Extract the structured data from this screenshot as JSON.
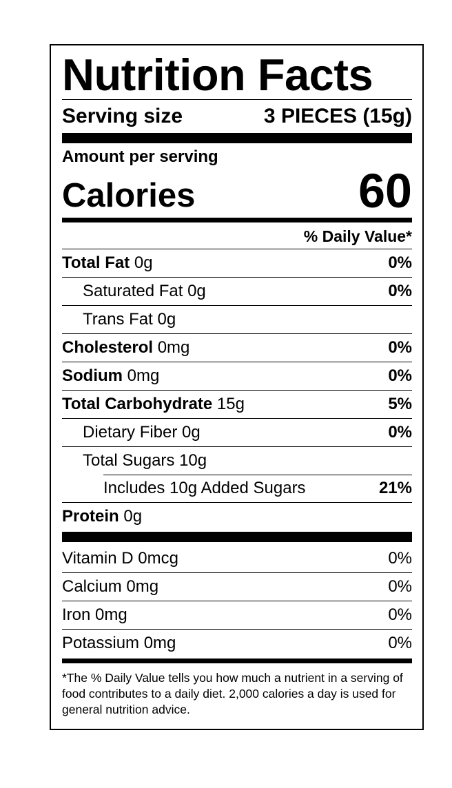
{
  "title": "Nutrition Facts",
  "serving": {
    "label": "Serving size",
    "value": "3 PIECES (15g)"
  },
  "amount_per_serving": "Amount per serving",
  "calories": {
    "label": "Calories",
    "value": "60"
  },
  "daily_value_header": "% Daily Value*",
  "nutrients": [
    {
      "name": "Total Fat",
      "amount": "0g",
      "dv": "0%"
    },
    {
      "name": "Saturated Fat 0g",
      "dv": "0%"
    },
    {
      "name": "Trans Fat 0g",
      "dv": ""
    },
    {
      "name": "Cholesterol",
      "amount": "0mg",
      "dv": "0%"
    },
    {
      "name": "Sodium",
      "amount": "0mg",
      "dv": "0%"
    },
    {
      "name": "Total Carbohydrate",
      "amount": "15g",
      "dv": "5%"
    },
    {
      "name": "Dietary Fiber 0g",
      "dv": "0%"
    },
    {
      "name": "Total Sugars 10g",
      "dv": ""
    },
    {
      "name": "Includes 10g Added Sugars",
      "dv": "21%"
    },
    {
      "name": "Protein",
      "amount": "0g",
      "dv": ""
    }
  ],
  "vitamins": [
    {
      "name": "Vitamin D 0mcg",
      "dv": "0%"
    },
    {
      "name": "Calcium 0mg",
      "dv": "0%"
    },
    {
      "name": "Iron 0mg",
      "dv": "0%"
    },
    {
      "name": "Potassium 0mg",
      "dv": "0%"
    }
  ],
  "footnote": "*The % Daily Value tells you how much a nutrient in a serving of food contributes to a daily diet. 2,000 calories a day is used for general nutrition advice."
}
